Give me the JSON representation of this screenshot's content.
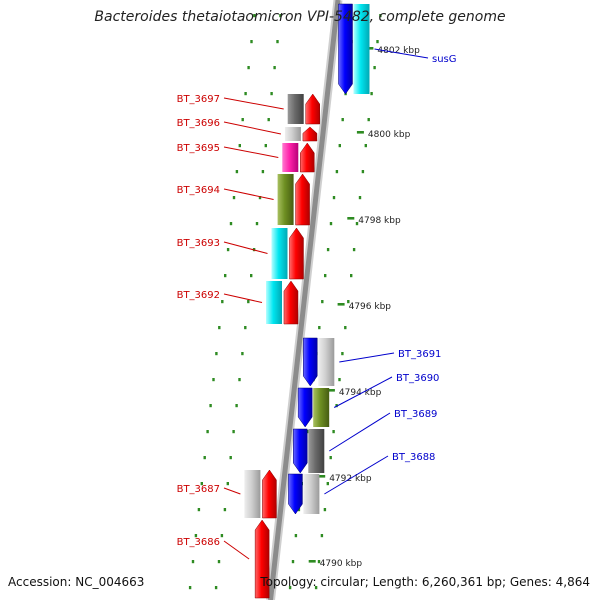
{
  "title": "Bacteroides thetaiotaomicron VPI-5482, complete genome",
  "accession": "Accession: NC_004663",
  "stats": "Topology: circular; Length: 6,260,361 bp; Genes: 4,864",
  "colors": {
    "backbone": "#8c8c8c",
    "tick": "#2e8b22",
    "label_minus": "#cc0000",
    "label_plus": "#0000cc",
    "axis_text": "#222222"
  },
  "scale": {
    "tick_labels": [
      {
        "label": "4802 kbp"
      },
      {
        "label": "4800 kbp"
      },
      {
        "label": "4798 kbp"
      },
      {
        "label": "4796 kbp"
      },
      {
        "label": "4794 kbp"
      },
      {
        "label": "4792 kbp"
      },
      {
        "label": "4790 kbp"
      }
    ]
  },
  "genes_minus": [
    {
      "name": "BT_3697",
      "cog": "dark-gray"
    },
    {
      "name": "BT_3696",
      "cog": "light-gray"
    },
    {
      "name": "BT_3695",
      "cog": "magenta"
    },
    {
      "name": "BT_3694",
      "cog": "olive"
    },
    {
      "name": "BT_3693",
      "cog": "cyan"
    },
    {
      "name": "BT_3692",
      "cog": "cyan"
    },
    {
      "name": "BT_3687",
      "cog": "light-gray"
    },
    {
      "name": "BT_3686",
      "cog": "none"
    }
  ],
  "genes_plus": [
    {
      "name": "susG",
      "cog": "cyan"
    },
    {
      "name": "BT_3691",
      "cog": "light-gray"
    },
    {
      "name": "BT_3690",
      "cog": "olive"
    },
    {
      "name": "BT_3689",
      "cog": "dark-gray"
    },
    {
      "name": "BT_3688",
      "cog": "light-gray"
    }
  ]
}
